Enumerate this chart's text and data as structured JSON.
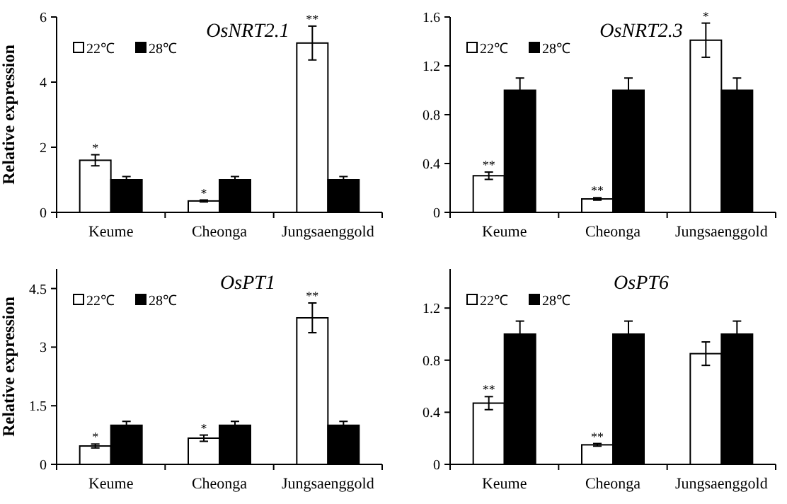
{
  "chart_data": [
    {
      "type": "bar",
      "title": "OsNRT2.1",
      "ylabel": "Relative expression",
      "categories": [
        "Keume",
        "Cheonga",
        "Jungsaenggold"
      ],
      "ylim": [
        0,
        6
      ],
      "yticks": [
        0,
        2,
        4,
        6
      ],
      "legend": "top left",
      "grid": false,
      "series": [
        {
          "name": "22℃",
          "color": "#ffffff",
          "values": [
            1.6,
            0.35,
            5.2
          ],
          "errors": [
            0.17,
            0.03,
            0.52
          ]
        },
        {
          "name": "28℃",
          "color": "#000000",
          "values": [
            1,
            1,
            1
          ],
          "errors": [
            0.1,
            0.1,
            0.1
          ]
        }
      ],
      "annotations": [
        {
          "text": "*",
          "x": "Keume",
          "y": 1.6
        },
        {
          "text": "*",
          "x": "Cheonga",
          "y": 0.35
        },
        {
          "text": "**",
          "x": "Jungsaenggold",
          "y": 5.2
        }
      ]
    },
    {
      "type": "bar",
      "title": "OsNRT2.3",
      "categories": [
        "Keume",
        "Cheonga",
        "Jungsaenggold"
      ],
      "ylim": [
        0,
        1.6
      ],
      "yticks": [
        0,
        0.4,
        0.8,
        1.2,
        1.6
      ],
      "legend": "top left",
      "grid": false,
      "series": [
        {
          "name": "22℃",
          "color": "#ffffff",
          "values": [
            0.3,
            0.11,
            1.41
          ],
          "errors": [
            0.03,
            0.01,
            0.14
          ]
        },
        {
          "name": "28℃",
          "color": "#000000",
          "values": [
            1,
            1,
            1
          ],
          "errors": [
            0.1,
            0.1,
            0.1
          ]
        }
      ],
      "annotations": [
        {
          "text": "**",
          "x": "Keume",
          "y": 0.3
        },
        {
          "text": "**",
          "x": "Cheonga",
          "y": 0.11
        },
        {
          "text": "*",
          "x": "Jungsaenggold",
          "y": 1.41
        }
      ]
    },
    {
      "type": "bar",
      "title": "OsPT1",
      "ylabel": "Relative expression",
      "categories": [
        "Keume",
        "Cheonga",
        "Jungsaenggold"
      ],
      "ylim": [
        0,
        5
      ],
      "yticks": [
        0,
        1.5,
        3,
        4.5
      ],
      "legend": "top left",
      "grid": false,
      "series": [
        {
          "name": "22℃",
          "color": "#ffffff",
          "values": [
            0.47,
            0.67,
            3.75
          ],
          "errors": [
            0.05,
            0.08,
            0.38
          ]
        },
        {
          "name": "28℃",
          "color": "#000000",
          "values": [
            1,
            1,
            1
          ],
          "errors": [
            0.1,
            0.1,
            0.1
          ]
        }
      ],
      "annotations": [
        {
          "text": "*",
          "x": "Keume",
          "y": 0.47
        },
        {
          "text": "*",
          "x": "Cheonga",
          "y": 0.67
        },
        {
          "text": "**",
          "x": "Jungsaenggold",
          "y": 3.75
        }
      ]
    },
    {
      "type": "bar",
      "title": "OsPT6",
      "categories": [
        "Keume",
        "Cheonga",
        "Jungsaenggold"
      ],
      "ylim": [
        0,
        1.5
      ],
      "yticks": [
        0,
        0.4,
        0.8,
        1.2
      ],
      "legend": "top left",
      "grid": false,
      "series": [
        {
          "name": "22℃",
          "color": "#ffffff",
          "values": [
            0.47,
            0.15,
            0.85
          ],
          "errors": [
            0.05,
            0.01,
            0.09
          ]
        },
        {
          "name": "28℃",
          "color": "#000000",
          "values": [
            1,
            1,
            1
          ],
          "errors": [
            0.1,
            0.1,
            0.1
          ]
        }
      ],
      "annotations": [
        {
          "text": "**",
          "x": "Keume",
          "y": 0.47
        },
        {
          "text": "**",
          "x": "Cheonga",
          "y": 0.15
        }
      ]
    }
  ]
}
